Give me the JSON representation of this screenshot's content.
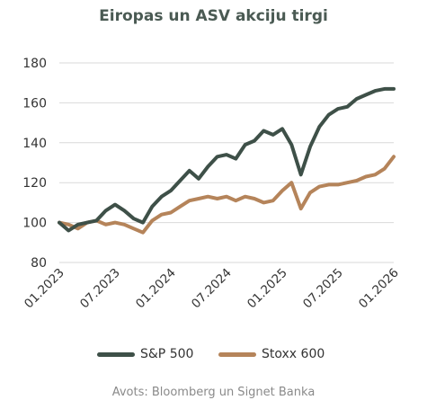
{
  "title": "Eiropas un ASV akciju tirgi",
  "source": "Avots: Bloomberg un Signet Banka",
  "chart_data": {
    "type": "line",
    "title": "Eiropas un ASV akciju tirgi",
    "xlabel": "",
    "ylabel": "",
    "x_range": [
      "01.2023",
      "01.2026"
    ],
    "ylim": [
      80,
      180
    ],
    "y_ticks": [
      80,
      100,
      120,
      140,
      160,
      180
    ],
    "x_ticks": [
      "01.2023",
      "07.2023",
      "01.2024",
      "07.2024",
      "01.2025",
      "07.2025",
      "01.2026"
    ],
    "grid": "horizontal",
    "legend_position": "bottom",
    "x": [
      "01.2023",
      "02.2023",
      "03.2023",
      "04.2023",
      "05.2023",
      "06.2023",
      "07.2023",
      "08.2023",
      "09.2023",
      "10.2023",
      "11.2023",
      "12.2023",
      "01.2024",
      "02.2024",
      "03.2024",
      "04.2024",
      "05.2024",
      "06.2024",
      "07.2024",
      "08.2024",
      "09.2024",
      "10.2024",
      "11.2024",
      "12.2024",
      "01.2025",
      "02.2025",
      "03.2025",
      "04.2025",
      "05.2025",
      "06.2025",
      "07.2025",
      "08.2025",
      "09.2025",
      "10.2025",
      "11.2025",
      "12.2025",
      "01.2026"
    ],
    "series": [
      {
        "name": "S&P 500",
        "color": "#3e5048",
        "values": [
          100,
          96,
          99,
          100,
          101,
          106,
          109,
          106,
          102,
          100,
          108,
          113,
          116,
          121,
          126,
          122,
          128,
          133,
          134,
          132,
          139,
          141,
          146,
          144,
          147,
          139,
          124,
          138,
          148,
          154,
          157,
          158,
          162,
          164,
          166,
          167,
          167
        ]
      },
      {
        "name": "Stoxx 600",
        "color": "#b5845a",
        "values": [
          100,
          99,
          97,
          100,
          101,
          99,
          100,
          99,
          97,
          95,
          101,
          104,
          105,
          108,
          111,
          112,
          113,
          112,
          113,
          111,
          113,
          112,
          110,
          111,
          116,
          120,
          107,
          115,
          118,
          119,
          119,
          120,
          121,
          123,
          124,
          127,
          133
        ]
      }
    ]
  }
}
